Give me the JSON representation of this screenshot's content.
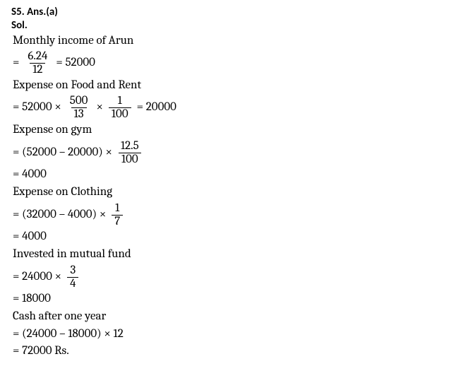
{
  "header": {
    "q_id": "S5. Ans.(a)",
    "sol_label": "Sol."
  },
  "lines": {
    "l1": "Monthly income of Arun",
    "eq1_pre": "=",
    "eq1_num": "6.24",
    "eq1_den": "12",
    "eq1_post": "= 52000",
    "l3": "Expense on Food and Rent",
    "eq2_pre": "= 52000 ×",
    "eq2_f1_num": "500",
    "eq2_f1_den": "13",
    "eq2_mid": "×",
    "eq2_f2_num": "1",
    "eq2_f2_den": "100",
    "eq2_post": "= 20000",
    "l5": "Expense on gym",
    "eq3_pre": "= (52000 – 20000) ×",
    "eq3_num": "12.5",
    "eq3_den": "100",
    "l7": "= 4000",
    "l8": "Expense on Clothing",
    "eq4_pre": "= (32000 – 4000) ×",
    "eq4_num": "1",
    "eq4_den": "7",
    "l10": "= 4000",
    "l11": "Invested in mutual fund",
    "eq5_pre": "= 24000 ×",
    "eq5_num": "3",
    "eq5_den": "4",
    "l13": "= 18000",
    "l14": "Cash after one year",
    "l15": "= (24000 – 18000) × 12",
    "l16": "= 72000 Rs."
  }
}
